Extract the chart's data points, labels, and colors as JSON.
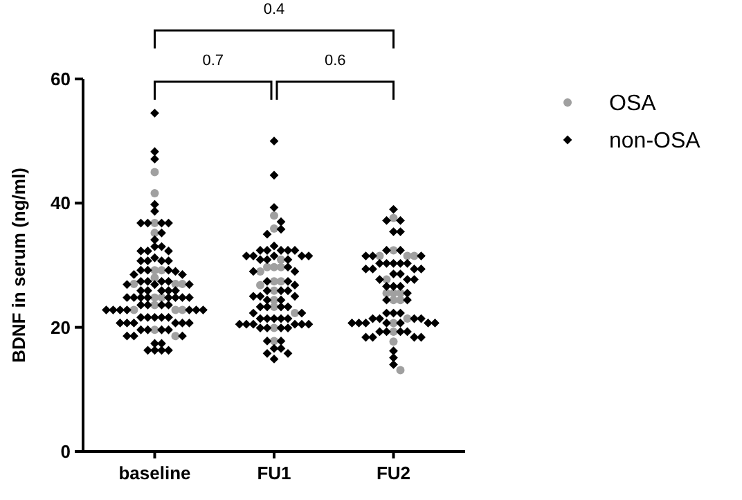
{
  "chart_data": {
    "type": "scatter",
    "ylabel": "BDNF in serum (ng/ml)",
    "categories": [
      "baseline",
      "FU1",
      "FU2"
    ],
    "ylim": [
      0,
      60
    ],
    "yticks": [
      0,
      20,
      40,
      60
    ],
    "grid": false,
    "legend": "right",
    "annotations": [
      "0.7",
      "0.6",
      "0.4"
    ],
    "series": [
      {
        "name": "OSA",
        "color": "#a0a0a0",
        "marker": "circle",
        "x": [
          "baseline",
          "baseline",
          "baseline",
          "baseline",
          "baseline",
          "baseline",
          "baseline",
          "baseline",
          "baseline",
          "baseline",
          "baseline",
          "baseline",
          "baseline",
          "baseline",
          "baseline",
          "baseline",
          "baseline",
          "baseline",
          "FU1",
          "FU1",
          "FU1",
          "FU1",
          "FU1",
          "FU1",
          "FU1",
          "FU1",
          "FU1",
          "FU1",
          "FU1",
          "FU1",
          "FU1",
          "FU1",
          "FU1",
          "FU1",
          "FU2",
          "FU2",
          "FU2",
          "FU2",
          "FU2",
          "FU2",
          "FU2",
          "FU2",
          "FU2",
          "FU2",
          "FU2",
          "FU2",
          "FU2",
          "FU2",
          "FU2",
          "FU2"
        ],
        "values": [
          45.0,
          41.6,
          36.8,
          35.2,
          29.2,
          29.2,
          28.0,
          27.0,
          27.0,
          27.0,
          24.8,
          24.8,
          23.6,
          22.8,
          22.8,
          22.8,
          19.6,
          18.6,
          38.0,
          35.9,
          30.9,
          29.7,
          29.7,
          29.7,
          29.0,
          27.4,
          27.4,
          26.8,
          25.9,
          24.4,
          23.3,
          22.3,
          19.9,
          17.8,
          37.6,
          32.4,
          31.5,
          31.5,
          31.5,
          27.7,
          25.5,
          25.5,
          25.5,
          24.4,
          24.4,
          21.4,
          20.7,
          19.3,
          17.7,
          13.1
        ]
      },
      {
        "name": "non-OSA",
        "color": "#000000",
        "marker": "diamond",
        "x": [
          "baseline",
          "baseline",
          "baseline",
          "baseline",
          "baseline",
          "baseline",
          "baseline",
          "baseline",
          "baseline",
          "baseline",
          "baseline",
          "baseline",
          "baseline",
          "baseline",
          "baseline",
          "baseline",
          "baseline",
          "baseline",
          "baseline",
          "baseline",
          "baseline",
          "baseline",
          "baseline",
          "baseline",
          "baseline",
          "baseline",
          "baseline",
          "baseline",
          "baseline",
          "baseline",
          "baseline",
          "baseline",
          "baseline",
          "baseline",
          "baseline",
          "baseline",
          "baseline",
          "baseline",
          "baseline",
          "baseline",
          "baseline",
          "baseline",
          "baseline",
          "baseline",
          "baseline",
          "baseline",
          "baseline",
          "baseline",
          "baseline",
          "baseline",
          "baseline",
          "baseline",
          "baseline",
          "baseline",
          "baseline",
          "baseline",
          "baseline",
          "baseline",
          "baseline",
          "baseline",
          "baseline",
          "baseline",
          "baseline",
          "baseline",
          "baseline",
          "baseline",
          "baseline",
          "baseline",
          "baseline",
          "baseline",
          "baseline",
          "baseline",
          "baseline",
          "baseline",
          "baseline",
          "baseline",
          "baseline",
          "baseline",
          "baseline",
          "baseline",
          "baseline",
          "baseline",
          "FU1",
          "FU1",
          "FU1",
          "FU1",
          "FU1",
          "FU1",
          "FU1",
          "FU1",
          "FU1",
          "FU1",
          "FU1",
          "FU1",
          "FU1",
          "FU1",
          "FU1",
          "FU1",
          "FU1",
          "FU1",
          "FU1",
          "FU1",
          "FU1",
          "FU1",
          "FU1",
          "FU1",
          "FU1",
          "FU1",
          "FU1",
          "FU1",
          "FU1",
          "FU1",
          "FU1",
          "FU1",
          "FU1",
          "FU1",
          "FU1",
          "FU1",
          "FU1",
          "FU1",
          "FU1",
          "FU1",
          "FU1",
          "FU1",
          "FU1",
          "FU1",
          "FU1",
          "FU1",
          "FU1",
          "FU1",
          "FU1",
          "FU1",
          "FU1",
          "FU1",
          "FU1",
          "FU1",
          "FU1",
          "FU1",
          "FU1",
          "FU1",
          "FU1",
          "FU1",
          "FU1",
          "FU1",
          "FU2",
          "FU2",
          "FU2",
          "FU2",
          "FU2",
          "FU2",
          "FU2",
          "FU2",
          "FU2",
          "FU2",
          "FU2",
          "FU2",
          "FU2",
          "FU2",
          "FU2",
          "FU2",
          "FU2",
          "FU2",
          "FU2",
          "FU2",
          "FU2",
          "FU2",
          "FU2",
          "FU2",
          "FU2",
          "FU2",
          "FU2",
          "FU2",
          "FU2",
          "FU2",
          "FU2",
          "FU2",
          "FU2",
          "FU2",
          "FU2",
          "FU2",
          "FU2",
          "FU2",
          "FU2",
          "FU2",
          "FU2",
          "FU2",
          "FU2",
          "FU2",
          "FU2",
          "FU2",
          "FU2",
          "FU2",
          "FU2",
          "FU2",
          "FU2",
          "FU2",
          "FU2",
          "FU2",
          "FU2"
        ],
        "values": [
          54.5,
          48.3,
          47.1,
          39.8,
          38.7,
          36.8,
          36.8,
          36.8,
          36.8,
          35.2,
          34.1,
          33.0,
          33.0,
          32.3,
          32.3,
          32.3,
          31.2,
          30.7,
          30.7,
          30.7,
          30.7,
          29.2,
          29.2,
          29.2,
          29.0,
          28.5,
          28.5,
          27.4,
          27.4,
          27.4,
          27.4,
          26.9,
          26.9,
          26.9,
          25.9,
          25.9,
          25.9,
          25.9,
          25.9,
          24.8,
          24.8,
          24.8,
          24.8,
          24.8,
          24.8,
          24.8,
          24.8,
          23.6,
          23.6,
          23.6,
          23.6,
          22.8,
          22.8,
          22.8,
          22.8,
          22.8,
          22.8,
          22.8,
          21.6,
          21.6,
          21.6,
          21.6,
          21.6,
          20.7,
          20.7,
          20.7,
          20.7,
          20.7,
          20.7,
          19.6,
          19.6,
          19.6,
          19.6,
          18.6,
          18.6,
          18.6,
          17.4,
          17.4,
          16.3,
          16.3,
          16.3,
          16.3,
          50.0,
          44.5,
          39.3,
          37.0,
          35.8,
          35.0,
          33.1,
          32.4,
          32.4,
          32.4,
          32.4,
          32.4,
          31.5,
          31.5,
          31.5,
          31.5,
          31.5,
          30.9,
          30.9,
          30.9,
          29.7,
          29.0,
          29.0,
          27.4,
          27.4,
          26.8,
          25.9,
          25.9,
          25.9,
          25.0,
          25.0,
          25.0,
          24.4,
          24.4,
          23.3,
          23.3,
          23.3,
          23.3,
          22.3,
          22.3,
          21.4,
          21.4,
          21.4,
          21.4,
          21.4,
          20.5,
          20.5,
          20.5,
          20.5,
          20.5,
          20.5,
          19.9,
          19.9,
          19.9,
          19.9,
          17.8,
          17.8,
          16.6,
          16.6,
          15.8,
          15.8,
          14.9,
          39.0,
          37.2,
          37.2,
          35.4,
          35.4,
          32.4,
          32.4,
          31.5,
          31.5,
          31.5,
          30.3,
          30.3,
          30.3,
          30.3,
          30.3,
          29.4,
          29.4,
          29.4,
          29.4,
          28.6,
          28.6,
          27.7,
          27.7,
          27.7,
          26.6,
          26.6,
          26.6,
          25.5,
          24.4,
          24.4,
          22.3,
          22.3,
          22.3,
          21.4,
          21.4,
          21.4,
          21.4,
          20.7,
          20.7,
          20.7,
          20.7,
          20.7,
          20.7,
          20.7,
          19.3,
          19.3,
          19.3,
          19.3,
          18.4,
          18.4,
          18.4,
          18.4,
          16.2,
          15.1,
          14.0
        ]
      }
    ]
  }
}
